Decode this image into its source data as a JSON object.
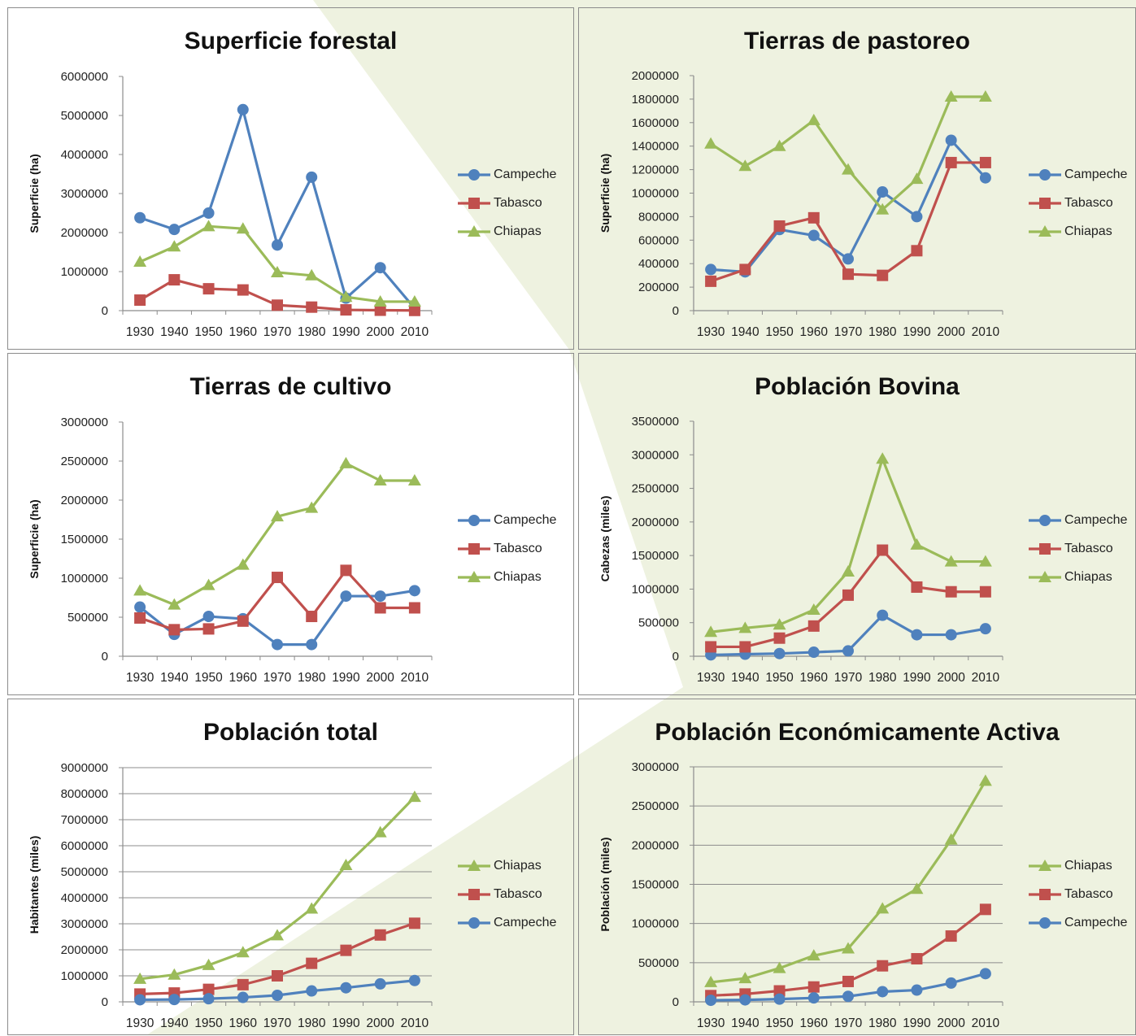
{
  "colors": {
    "Campeche": "#4f81bd",
    "Tabasco": "#c0504d",
    "Chiapas": "#9bbb59",
    "background_shape": "#eef2e0"
  },
  "chart_data": [
    {
      "type": "line",
      "title": "Superficie forestal",
      "ylabel": "Superficie (ha)",
      "xlabel": "",
      "x": [
        "1930",
        "1940",
        "1950",
        "1960",
        "1970",
        "1980",
        "1990",
        "2000",
        "2010"
      ],
      "ylim": [
        0,
        6000000
      ],
      "yticks": [
        "0",
        "1000000",
        "2000000",
        "3000000",
        "4000000",
        "5000000",
        "6000000"
      ],
      "grid": false,
      "legend": "right",
      "series": [
        {
          "name": "Campeche",
          "marker": "circle",
          "values": [
            2380000,
            2080000,
            2500000,
            5150000,
            1680000,
            3420000,
            320000,
            1100000,
            60000
          ]
        },
        {
          "name": "Tabasco",
          "marker": "square",
          "values": [
            270000,
            790000,
            560000,
            530000,
            140000,
            90000,
            20000,
            10000,
            5000
          ]
        },
        {
          "name": "Chiapas",
          "marker": "triangle",
          "values": [
            1250000,
            1640000,
            2160000,
            2100000,
            980000,
            900000,
            350000,
            230000,
            230000
          ]
        }
      ]
    },
    {
      "type": "line",
      "title": "Tierras de pastoreo",
      "ylabel": "Superficie (ha)",
      "xlabel": "",
      "x": [
        "1930",
        "1940",
        "1950",
        "1960",
        "1970",
        "1980",
        "1990",
        "2000",
        "2010"
      ],
      "ylim": [
        0,
        2000000
      ],
      "yticks": [
        "0",
        "200000",
        "400000",
        "600000",
        "800000",
        "1000000",
        "1200000",
        "1400000",
        "1600000",
        "1800000",
        "2000000"
      ],
      "grid": false,
      "legend": "right",
      "series": [
        {
          "name": "Campeche",
          "marker": "circle",
          "values": [
            350000,
            330000,
            690000,
            640000,
            440000,
            1010000,
            800000,
            1450000,
            1130000
          ]
        },
        {
          "name": "Tabasco",
          "marker": "square",
          "values": [
            250000,
            350000,
            720000,
            790000,
            310000,
            300000,
            510000,
            1260000,
            1260000
          ]
        },
        {
          "name": "Chiapas",
          "marker": "triangle",
          "values": [
            1420000,
            1230000,
            1400000,
            1620000,
            1200000,
            860000,
            1120000,
            1820000,
            1820000
          ]
        }
      ]
    },
    {
      "type": "line",
      "title": "Tierras de cultivo",
      "ylabel": "Superficie (ha)",
      "xlabel": "",
      "x": [
        "1930",
        "1940",
        "1950",
        "1960",
        "1970",
        "1980",
        "1990",
        "2000",
        "2010"
      ],
      "ylim": [
        0,
        3000000
      ],
      "yticks": [
        "0",
        "500000",
        "1000000",
        "1500000",
        "2000000",
        "2500000",
        "3000000"
      ],
      "grid": false,
      "legend": "right",
      "series": [
        {
          "name": "Campeche",
          "marker": "circle",
          "values": [
            630000,
            280000,
            510000,
            480000,
            150000,
            150000,
            770000,
            770000,
            840000
          ]
        },
        {
          "name": "Tabasco",
          "marker": "square",
          "values": [
            490000,
            340000,
            350000,
            450000,
            1010000,
            510000,
            1100000,
            620000,
            620000
          ]
        },
        {
          "name": "Chiapas",
          "marker": "triangle",
          "values": [
            840000,
            660000,
            910000,
            1170000,
            1790000,
            1900000,
            2470000,
            2250000,
            2250000
          ]
        }
      ]
    },
    {
      "type": "line",
      "title": "Población Bovina",
      "ylabel": "Cabezas (miles)",
      "xlabel": "",
      "x": [
        "1930",
        "1940",
        "1950",
        "1960",
        "1970",
        "1980",
        "1990",
        "2000",
        "2010"
      ],
      "ylim": [
        0,
        3500000
      ],
      "yticks": [
        "0",
        "500000",
        "1000000",
        "1500000",
        "2000000",
        "2500000",
        "3000000",
        "3500000"
      ],
      "grid": false,
      "legend": "right",
      "series": [
        {
          "name": "Campeche",
          "marker": "circle",
          "values": [
            20000,
            30000,
            40000,
            60000,
            80000,
            610000,
            320000,
            320000,
            410000
          ]
        },
        {
          "name": "Tabasco",
          "marker": "square",
          "values": [
            140000,
            140000,
            270000,
            450000,
            910000,
            1580000,
            1030000,
            960000,
            960000
          ]
        },
        {
          "name": "Chiapas",
          "marker": "triangle",
          "values": [
            360000,
            420000,
            470000,
            690000,
            1260000,
            2940000,
            1660000,
            1410000,
            1410000
          ]
        }
      ]
    },
    {
      "type": "line",
      "title": "Población total",
      "ylabel": "Habitantes (miles)",
      "xlabel": "",
      "x": [
        "1930",
        "1940",
        "1950",
        "1960",
        "1970",
        "1980",
        "1990",
        "2000",
        "2010"
      ],
      "ylim": [
        0,
        9000000
      ],
      "yticks": [
        "0",
        "1000000",
        "2000000",
        "3000000",
        "4000000",
        "5000000",
        "6000000",
        "7000000",
        "8000000",
        "9000000"
      ],
      "grid": true,
      "legend": "right",
      "series": [
        {
          "name": "Chiapas",
          "marker": "triangle",
          "values": [
            880000,
            1040000,
            1410000,
            1900000,
            2550000,
            3580000,
            5250000,
            6510000,
            7870000
          ]
        },
        {
          "name": "Tabasco",
          "marker": "square",
          "values": [
            300000,
            340000,
            480000,
            660000,
            1000000,
            1480000,
            1980000,
            2570000,
            3020000
          ]
        },
        {
          "name": "Campeche",
          "marker": "circle",
          "values": [
            80000,
            90000,
            120000,
            170000,
            250000,
            420000,
            540000,
            690000,
            820000
          ]
        }
      ]
    },
    {
      "type": "line",
      "title": "Población Económicamente Activa",
      "ylabel": "Población (miles)",
      "xlabel": "",
      "x": [
        "1930",
        "1940",
        "1950",
        "1960",
        "1970",
        "1980",
        "1990",
        "2000",
        "2010"
      ],
      "ylim": [
        0,
        3000000
      ],
      "yticks": [
        "0",
        "500000",
        "1000000",
        "1500000",
        "2000000",
        "2500000",
        "3000000"
      ],
      "grid": true,
      "legend": "right",
      "series": [
        {
          "name": "Chiapas",
          "marker": "triangle",
          "values": [
            250000,
            300000,
            430000,
            590000,
            680000,
            1190000,
            1440000,
            2070000,
            2820000
          ]
        },
        {
          "name": "Tabasco",
          "marker": "square",
          "values": [
            80000,
            100000,
            140000,
            190000,
            260000,
            460000,
            550000,
            840000,
            1180000
          ]
        },
        {
          "name": "Campeche",
          "marker": "circle",
          "values": [
            20000,
            25000,
            35000,
            50000,
            70000,
            130000,
            150000,
            240000,
            360000
          ]
        }
      ]
    }
  ]
}
